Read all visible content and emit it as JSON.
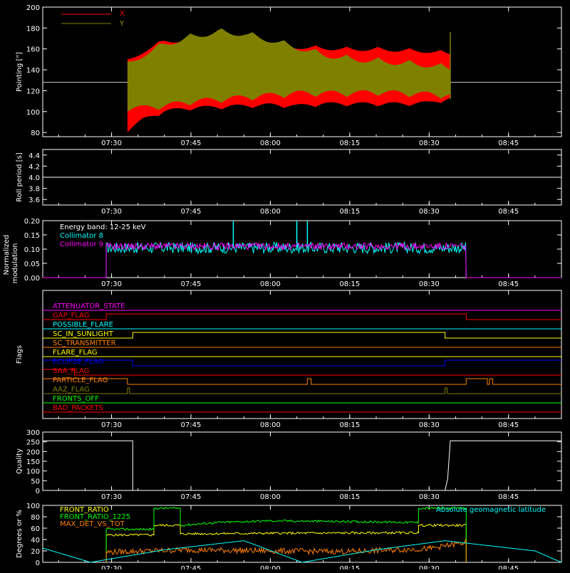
{
  "time_ticks": [
    "07:30",
    "07:45",
    "08:00",
    "08:15",
    "08:30",
    "08:45"
  ],
  "chart_data": [
    {
      "type": "area",
      "ylabel": "Pointing [\"]",
      "ylim": [
        76,
        200
      ],
      "yticks": [
        80,
        100,
        120,
        140,
        160,
        180,
        200
      ],
      "x_range": [
        "07:17",
        "08:55"
      ],
      "baseline": 128,
      "series": [
        {
          "name": "X",
          "color": "#ff0000",
          "x": [
            "07:33",
            "07:36",
            "07:40",
            "07:45",
            "07:50",
            "07:55",
            "08:00",
            "08:05",
            "08:10",
            "08:15",
            "08:20",
            "08:25",
            "08:30",
            "08:34"
          ],
          "upper": [
            150,
            160,
            170,
            170,
            168,
            166,
            164,
            164,
            163,
            162,
            162,
            161,
            160,
            158
          ],
          "lower": [
            80,
            90,
            98,
            101,
            102,
            103,
            104,
            103,
            105,
            105,
            105,
            105,
            106,
            110
          ]
        },
        {
          "name": "Y",
          "color": "#808000",
          "x": [
            "07:33",
            "07:36",
            "07:40",
            "07:45",
            "07:50",
            "07:55",
            "08:00",
            "08:05",
            "08:10",
            "08:15",
            "08:20",
            "08:25",
            "08:30",
            "08:34"
          ],
          "upper": [
            148,
            158,
            168,
            175,
            180,
            178,
            172,
            165,
            158,
            154,
            152,
            150,
            148,
            145
          ],
          "lower": [
            100,
            100,
            102,
            106,
            108,
            110,
            112,
            114,
            114,
            114,
            115,
            114,
            113,
            112
          ]
        }
      ]
    },
    {
      "type": "line",
      "ylabel": "Roll period [s]",
      "ylim": [
        3.5,
        4.5
      ],
      "yticks": [
        3.6,
        3.8,
        4.0,
        4.2,
        4.4
      ],
      "tick_labels": [
        "3.6",
        "3.8",
        "4.0",
        "4.2",
        "4.4"
      ],
      "series": [
        {
          "color": "#ffffff",
          "x": [
            "07:17",
            "08:55"
          ],
          "y": [
            4.0,
            4.0
          ]
        }
      ]
    },
    {
      "type": "line",
      "ylabel_lines": [
        "Normalized",
        "modulation"
      ],
      "ylim": [
        0,
        0.2
      ],
      "yticks": [
        0.0,
        0.05,
        0.1,
        0.15,
        0.2
      ],
      "tick_labels": [
        "0.00",
        "0.05",
        "0.10",
        "0.15",
        "0.20"
      ],
      "annotation": "Energy band: 12-25 keV",
      "active_range": [
        "07:29",
        "08:37"
      ],
      "series": [
        {
          "name": "Collimator 8",
          "color": "#00ffff",
          "mean": 0.105,
          "spread": 0.02,
          "spikes": [
            {
              "x": "07:53",
              "y": 0.2
            },
            {
              "x": "08:05",
              "y": 0.2
            },
            {
              "x": "08:07",
              "y": 0.2
            }
          ]
        },
        {
          "name": "Collimator 9",
          "color": "#ff00ff",
          "mean": 0.11,
          "spread": 0.012,
          "spikes": []
        }
      ]
    },
    {
      "type": "line",
      "ylabel": "Flags",
      "flags": [
        {
          "name": "ATTENUATOR_STATE",
          "color": "#ff00ff",
          "steps": [
            [
              "07:17",
              0
            ]
          ]
        },
        {
          "name": "GAP_FLAG",
          "color": "#ff0000",
          "steps": [
            [
              "07:17",
              0
            ],
            [
              "07:29",
              1
            ],
            [
              "08:37",
              0
            ]
          ]
        },
        {
          "name": "POSSIBLE_FLARE",
          "color": "#00ffff",
          "steps": [
            [
              "07:17",
              0
            ]
          ]
        },
        {
          "name": "SC_IN_SUNLIGHT",
          "color": "#ffff00",
          "steps": [
            [
              "07:17",
              0
            ],
            [
              "07:34",
              1
            ],
            [
              "08:33",
              0
            ]
          ]
        },
        {
          "name": "SC_TRANSMITTER",
          "color": "#ff8000",
          "steps": [
            [
              "07:17",
              0
            ]
          ]
        },
        {
          "name": "FLARE_FLAG",
          "color": "#ffff00",
          "steps": [
            [
              "07:17",
              0
            ]
          ]
        },
        {
          "name": "ECLIPSE_FLAG",
          "color": "#0000ff",
          "steps": [
            [
              "07:17",
              1
            ],
            [
              "07:34",
              0
            ],
            [
              "08:33",
              1
            ]
          ]
        },
        {
          "name": "SAA_FLAG",
          "color": "#ff0000",
          "steps": [
            [
              "07:17",
              1
            ],
            [
              "07:23",
              0
            ]
          ]
        },
        {
          "name": "PARTICLE_FLAG",
          "color": "#ff8000",
          "steps": [
            [
              "07:17",
              1
            ],
            [
              "07:33",
              0
            ],
            [
              "08:07",
              1
            ],
            [
              "08:07.7",
              0
            ],
            [
              "08:37",
              1
            ],
            [
              "08:41",
              0
            ],
            [
              "08:41.4",
              1
            ],
            [
              "08:42",
              0
            ]
          ]
        },
        {
          "name": "AAZ_FLAG",
          "color": "#808000",
          "steps": [
            [
              "07:17",
              0
            ],
            [
              "07:33",
              1
            ],
            [
              "07:33.4",
              0
            ],
            [
              "08:33",
              1
            ],
            [
              "08:33.4",
              0
            ]
          ]
        },
        {
          "name": "FRONTS_OFF",
          "color": "#00ff00",
          "steps": [
            [
              "07:17",
              0
            ]
          ]
        },
        {
          "name": "BAD_PACKETS",
          "color": "#ff0000",
          "steps": [
            [
              "07:17",
              0
            ]
          ]
        }
      ]
    },
    {
      "type": "line",
      "ylabel": "Quality",
      "ylim": [
        0,
        300
      ],
      "yticks": [
        0,
        50,
        100,
        150,
        200,
        250,
        300
      ],
      "series": [
        {
          "color": "#ffffff",
          "x": [
            "07:17",
            "07:34",
            "07:34",
            "08:33",
            "08:33.5",
            "08:34",
            "08:55"
          ],
          "y": [
            255,
            255,
            0,
            0,
            60,
            255,
            255
          ]
        }
      ]
    },
    {
      "type": "line",
      "ylabel": "Degrees or %",
      "ylim": [
        0,
        100
      ],
      "yticks": [
        0,
        20,
        40,
        60,
        80,
        100
      ],
      "annotation": "Absolute geomagnetic latitude",
      "series": [
        {
          "name": "FRONT_RATIO",
          "color": "#ffff00",
          "x": [
            "07:29",
            "07:29",
            "07:38",
            "07:38",
            "07:43",
            "07:43",
            "08:00",
            "08:28",
            "08:28",
            "08:37",
            "08:37"
          ],
          "y": [
            0,
            48,
            48,
            65,
            65,
            50,
            51,
            52,
            65,
            65,
            0
          ]
        },
        {
          "name": "FRONT_RATIO_1225",
          "color": "#00ff00",
          "x": [
            "07:29",
            "07:29",
            "07:38",
            "07:38",
            "07:43",
            "07:43",
            "07:50",
            "08:00",
            "08:10",
            "08:20",
            "08:28",
            "08:28",
            "08:37",
            "08:37"
          ],
          "y": [
            0,
            58,
            58,
            95,
            95,
            65,
            70,
            73,
            72,
            71,
            70,
            95,
            95,
            0
          ]
        },
        {
          "name": "MAX_DET_VS_TOT",
          "color": "#ff8000",
          "x": [
            "07:29",
            "07:29",
            "07:45",
            "08:00",
            "08:15",
            "08:30",
            "08:37",
            "08:37"
          ],
          "y": [
            0,
            18,
            22,
            20,
            19,
            24,
            35,
            0
          ]
        },
        {
          "color": "#00ffff",
          "x": [
            "07:17",
            "07:26",
            "07:40",
            "07:55",
            "08:06",
            "08:20",
            "08:33",
            "08:50",
            "08:55"
          ],
          "y": [
            25,
            0,
            22,
            38,
            0,
            22,
            38,
            20,
            0
          ]
        }
      ]
    }
  ]
}
